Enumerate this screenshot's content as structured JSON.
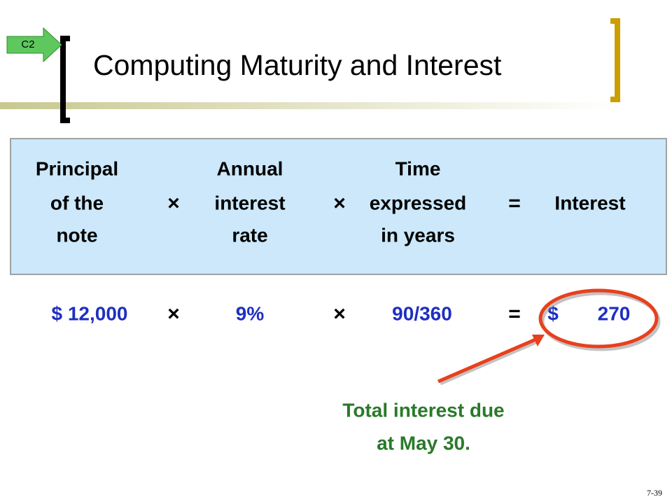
{
  "badge": "C2",
  "title": "Computing Maturity and Interest",
  "header": {
    "columns": [
      [
        "Principal",
        "of the",
        "note"
      ],
      [
        "Annual",
        "interest",
        "rate"
      ],
      [
        "Time",
        "expressed",
        "in years"
      ],
      [
        "Interest"
      ]
    ],
    "operators": [
      "×",
      "×",
      "="
    ]
  },
  "values": {
    "items": [
      "$ 12,000",
      "9%",
      "90/360",
      "$",
      "270"
    ],
    "operators": [
      "×",
      "×",
      "="
    ]
  },
  "annotation": [
    "Total interest due",
    "at May 30."
  ],
  "slide_number": "7-39"
}
